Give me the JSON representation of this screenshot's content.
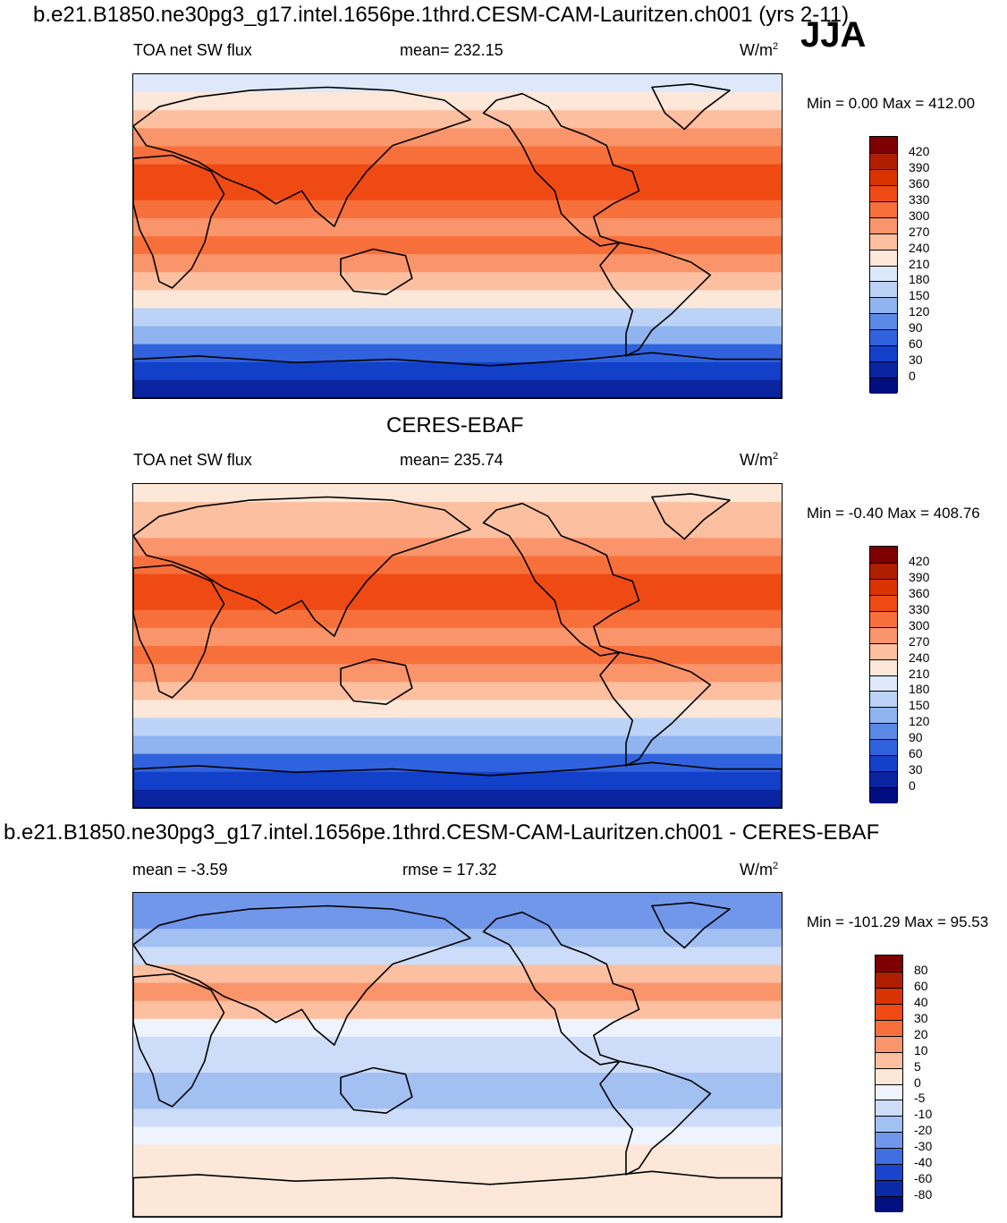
{
  "figure": {
    "title_model": "b.e21.B1850.ne30pg3_g17.intel.1656pe.1thrd.CESM-CAM-Lauritzen.ch001 (yrs 2-11)",
    "season": "JJA",
    "title_obs": "CERES-EBAF",
    "title_diff": "b.e21.B1850.ne30pg3_g17.intel.1656pe.1thrd.CESM-CAM-Lauritzen.ch001 - CERES-EBAF"
  },
  "panels": [
    {
      "left_label": "TOA net SW flux",
      "center_label": "mean= 232.15",
      "units": "W/m",
      "units_sup": "2",
      "minmax": "Min =   0.00 Max = 412.00"
    },
    {
      "left_label": "TOA net SW flux",
      "center_label": "mean= 235.74",
      "units": "W/m",
      "units_sup": "2",
      "minmax": "Min =  -0.40 Max = 408.76"
    },
    {
      "left_label": "mean =  -3.59",
      "center_label": "rmse =  17.32",
      "units": "W/m",
      "units_sup": "2",
      "minmax": "Min = -101.29 Max =  95.53"
    }
  ],
  "chart_data": [
    {
      "type": "heatmap",
      "title": "b.e21.B1850.ne30pg3_g17.intel.1656pe.1thrd.CESM-CAM-Lauritzen.ch001 (yrs 2-11)",
      "variable": "TOA net SW flux",
      "mean": 232.15,
      "min": 0.0,
      "max": 412.0,
      "units": "W/m2",
      "colorbar_levels": [
        420,
        390,
        360,
        330,
        300,
        270,
        240,
        210,
        180,
        150,
        120,
        90,
        60,
        30,
        0
      ],
      "colorbar_colors": [
        "#7f0000",
        "#b01e00",
        "#d93300",
        "#f04a14",
        "#f7703c",
        "#fa946a",
        "#fcbfa0",
        "#fde7d8",
        "#dde9fb",
        "#bcd3f7",
        "#8fb4f0",
        "#5b8ae6",
        "#2f62dc",
        "#1240c8",
        "#0a24a0",
        "#000e82"
      ],
      "profile_lat": [
        85,
        75,
        65,
        55,
        45,
        35,
        25,
        15,
        5,
        -5,
        -15,
        -25,
        -35,
        -45,
        -55,
        -65,
        -75,
        -85
      ],
      "profile_value": [
        190,
        215,
        245,
        275,
        300,
        335,
        345,
        320,
        285,
        300,
        280,
        255,
        215,
        170,
        120,
        70,
        35,
        15
      ]
    },
    {
      "type": "heatmap",
      "title": "CERES-EBAF",
      "variable": "TOA net SW flux",
      "mean": 235.74,
      "min": -0.4,
      "max": 408.76,
      "units": "W/m2",
      "colorbar_levels": [
        420,
        390,
        360,
        330,
        300,
        270,
        240,
        210,
        180,
        150,
        120,
        90,
        60,
        30,
        0
      ],
      "colorbar_colors": [
        "#7f0000",
        "#b01e00",
        "#d93300",
        "#f04a14",
        "#f7703c",
        "#fa946a",
        "#fcbfa0",
        "#fde7d8",
        "#dde9fb",
        "#bcd3f7",
        "#8fb4f0",
        "#5b8ae6",
        "#2f62dc",
        "#1240c8",
        "#0a24a0",
        "#000e82"
      ],
      "profile_lat": [
        85,
        75,
        65,
        55,
        45,
        35,
        25,
        15,
        5,
        -5,
        -15,
        -25,
        -35,
        -45,
        -55,
        -65,
        -75,
        -85
      ],
      "profile_value": [
        230,
        250,
        265,
        280,
        305,
        330,
        345,
        325,
        290,
        305,
        285,
        260,
        220,
        175,
        125,
        75,
        35,
        10
      ]
    },
    {
      "type": "heatmap",
      "title": "b.e21.B1850.ne30pg3_g17.intel.1656pe.1thrd.CESM-CAM-Lauritzen.ch001 - CERES-EBAF",
      "variable": "difference",
      "mean": -3.59,
      "rmse": 17.32,
      "min": -101.29,
      "max": 95.53,
      "units": "W/m2",
      "colorbar_levels": [
        80,
        60,
        40,
        30,
        20,
        10,
        5,
        0,
        -5,
        -10,
        -20,
        -30,
        -40,
        -60,
        -80
      ],
      "colorbar_colors": [
        "#7f0000",
        "#b01e00",
        "#d93300",
        "#f04a14",
        "#f7703c",
        "#fa946a",
        "#fcbfa0",
        "#fde7d8",
        "#eef3fd",
        "#cddcf8",
        "#a3c0f2",
        "#7197ea",
        "#3f6fe0",
        "#1845cc",
        "#0a2aa8",
        "#001080"
      ],
      "profile_lat": [
        85,
        75,
        65,
        55,
        45,
        35,
        25,
        15,
        5,
        -5,
        -15,
        -25,
        -35,
        -45,
        -55,
        -65,
        -75,
        -85
      ],
      "profile_value": [
        -30,
        -25,
        -15,
        -8,
        5,
        12,
        8,
        -5,
        -10,
        -8,
        -12,
        -15,
        -10,
        -5,
        0,
        3,
        2,
        0
      ]
    }
  ]
}
